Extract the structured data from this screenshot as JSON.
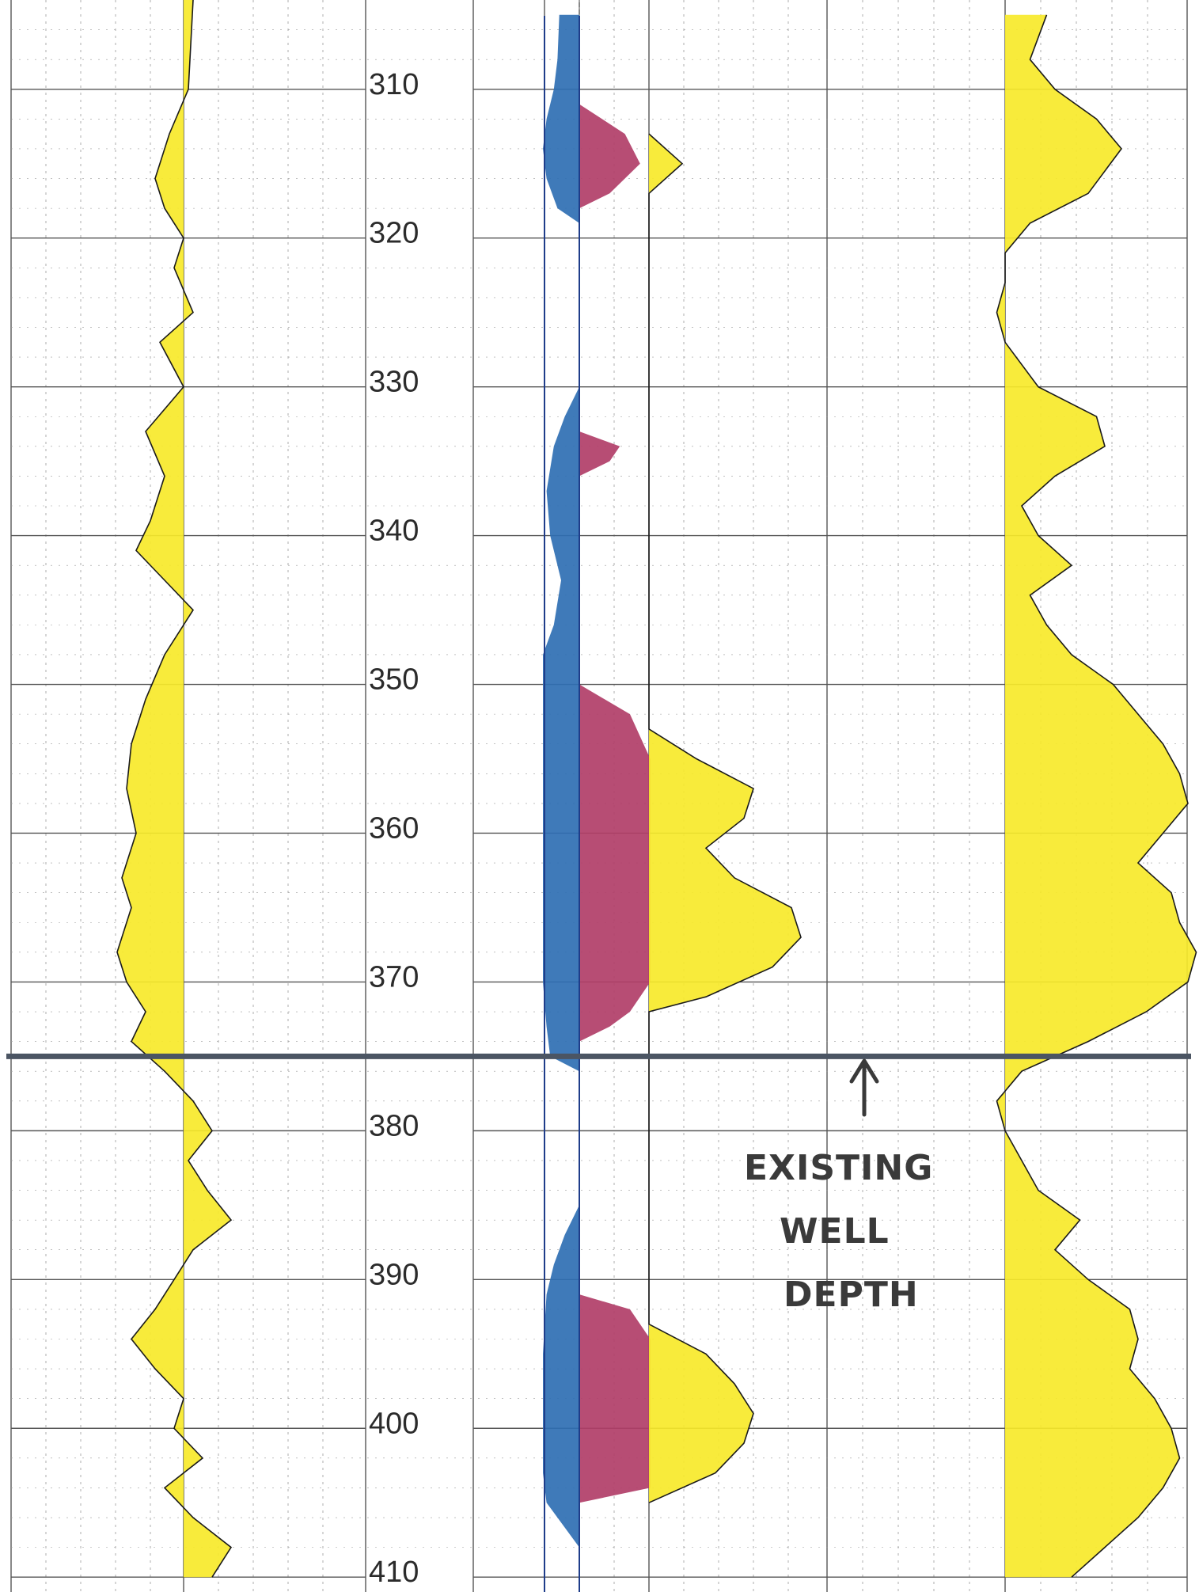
{
  "chart_data": {
    "type": "area",
    "title": "",
    "xlabel": "",
    "ylabel": "",
    "ylim": [
      304,
      411
    ],
    "y_ticks": [
      310,
      320,
      330,
      340,
      350,
      360,
      370,
      380,
      390,
      400,
      410
    ],
    "grid": true,
    "colors": {
      "yellow": "#f7e92a",
      "blue": "#2f6fb3",
      "red": "#b13e68",
      "curve": "#1a1a1a",
      "grid_major": "#555555",
      "grid_minor": "#9a9a9a",
      "marker_line": "#4b5563"
    },
    "marker": {
      "depth": 375,
      "label_lines": [
        "EXISTING",
        "WELL",
        "DEPTH"
      ]
    },
    "series": [
      {
        "track": 1,
        "fill": "yellow",
        "baseline_depth_range": [
          304,
          376
        ],
        "depth": [
          304,
          310,
          313,
          316,
          318,
          320,
          322,
          325,
          327,
          330,
          333,
          336,
          339,
          341,
          343,
          345,
          348,
          351,
          354,
          357,
          360,
          363,
          365,
          368,
          370,
          372,
          374,
          376,
          378,
          380,
          382,
          384,
          386,
          388,
          390,
          392,
          394,
          396,
          398,
          400,
          402,
          404,
          406,
          408,
          410
        ],
        "value": [
          0.1,
          0.05,
          -0.15,
          -0.3,
          -0.2,
          0.0,
          -0.1,
          0.1,
          -0.25,
          0.0,
          -0.4,
          -0.2,
          -0.35,
          -0.5,
          -0.2,
          0.1,
          -0.2,
          -0.4,
          -0.55,
          -0.6,
          -0.5,
          -0.65,
          -0.55,
          -0.7,
          -0.6,
          -0.4,
          -0.55,
          -0.2,
          0.1,
          0.3,
          0.05,
          0.25,
          0.5,
          0.1,
          -0.1,
          -0.3,
          -0.55,
          -0.3,
          0.0,
          -0.1,
          0.2,
          -0.2,
          0.1,
          0.5,
          0.3
        ]
      },
      {
        "track": 2,
        "fill": "blue",
        "depth": [
          305,
          308,
          310,
          312,
          314,
          316,
          318,
          319,
          330,
          332,
          334,
          337,
          340,
          343,
          346,
          348,
          350,
          355,
          360,
          365,
          370,
          373,
          375,
          376,
          385,
          387,
          389,
          391,
          395,
          400,
          403,
          405,
          406,
          408
        ],
        "value": [
          0.55,
          0.6,
          0.7,
          0.9,
          1.0,
          0.9,
          0.6,
          0.0,
          0.0,
          0.4,
          0.7,
          0.9,
          0.8,
          0.5,
          0.7,
          1.0,
          1.0,
          1.0,
          1.0,
          1.0,
          1.0,
          0.9,
          0.8,
          0.0,
          0.0,
          0.4,
          0.7,
          0.9,
          1.0,
          1.0,
          1.0,
          0.9,
          0.6,
          0.0
        ]
      },
      {
        "track": 2,
        "fill": "red",
        "depth": [
          311,
          313,
          315,
          317,
          318,
          333,
          334,
          335,
          336,
          350,
          352,
          355,
          360,
          365,
          370,
          372,
          373,
          374,
          391,
          392,
          394,
          398,
          402,
          404,
          405
        ],
        "value": [
          0.0,
          0.45,
          0.6,
          0.3,
          0.0,
          0.0,
          0.4,
          0.3,
          0.0,
          0.0,
          0.5,
          0.7,
          0.7,
          0.7,
          0.7,
          0.5,
          0.3,
          0.0,
          0.0,
          0.5,
          0.7,
          0.7,
          0.7,
          0.7,
          0.0
        ]
      },
      {
        "track": 2,
        "fill": "yellow",
        "depth": [
          313,
          315,
          317,
          353,
          355,
          357,
          359,
          361,
          363,
          365,
          367,
          369,
          371,
          372,
          393,
          395,
          397,
          399,
          401,
          403,
          405
        ],
        "value": [
          0.0,
          0.35,
          0.0,
          0.0,
          0.5,
          1.1,
          1.0,
          0.6,
          0.9,
          1.5,
          1.6,
          1.3,
          0.6,
          0.0,
          0.0,
          0.6,
          0.9,
          1.1,
          1.0,
          0.7,
          0.0
        ]
      },
      {
        "track": 4,
        "fill": "yellow",
        "depth": [
          305,
          308,
          310,
          312,
          314,
          317,
          319,
          321,
          323,
          325,
          327,
          330,
          332,
          334,
          336,
          338,
          340,
          342,
          344,
          346,
          348,
          350,
          352,
          354,
          356,
          358,
          360,
          362,
          364,
          366,
          368,
          370,
          372,
          374,
          376,
          378,
          380,
          382,
          384,
          386,
          388,
          390,
          392,
          394,
          396,
          398,
          400,
          402,
          404,
          406,
          408,
          410
        ],
        "value": [
          0.5,
          0.3,
          0.6,
          1.1,
          1.4,
          1.0,
          0.3,
          0.0,
          0.0,
          -0.1,
          0.0,
          0.4,
          1.1,
          1.2,
          0.6,
          0.2,
          0.4,
          0.8,
          0.3,
          0.5,
          0.8,
          1.3,
          1.6,
          1.9,
          2.1,
          2.2,
          1.9,
          1.6,
          2.0,
          2.1,
          2.3,
          2.2,
          1.7,
          1.0,
          0.2,
          -0.1,
          0.0,
          0.2,
          0.4,
          0.9,
          0.6,
          1.0,
          1.5,
          1.6,
          1.5,
          1.8,
          2.0,
          2.1,
          1.9,
          1.6,
          1.2,
          0.8
        ]
      }
    ]
  }
}
